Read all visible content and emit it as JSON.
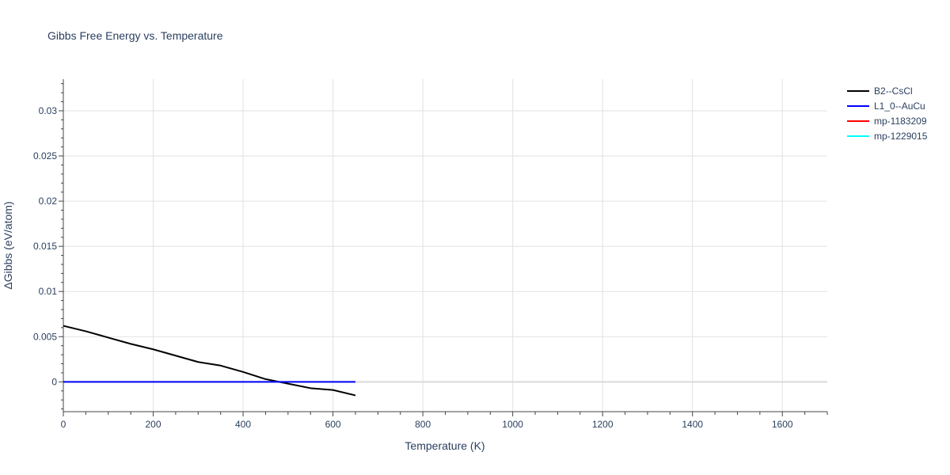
{
  "chart_data": {
    "type": "line",
    "title": "Gibbs Free Energy vs. Temperature",
    "xlabel": "Temperature (K)",
    "ylabel": "ΔGibbs (eV/atom)",
    "xlim": [
      0,
      1700
    ],
    "ylim": [
      -0.0033,
      0.0335
    ],
    "x_ticks": [
      0,
      200,
      400,
      600,
      800,
      1000,
      1200,
      1400,
      1600
    ],
    "y_ticks": [
      0,
      0.005,
      0.01,
      0.015,
      0.02,
      0.025,
      0.03
    ],
    "y_tick_labels": [
      "0",
      "0.005",
      "0.01",
      "0.015",
      "0.02",
      "0.025",
      "0.03"
    ],
    "grid": true,
    "legend_position": "top-right",
    "series": [
      {
        "name": "B2--CsCl",
        "color": "#000000",
        "x": [
          0,
          50,
          100,
          150,
          200,
          250,
          300,
          350,
          400,
          450,
          500,
          550,
          600,
          650
        ],
        "y": [
          0.0062,
          0.0056,
          0.0049,
          0.0042,
          0.0036,
          0.0029,
          0.0022,
          0.0018,
          0.0011,
          0.0003,
          -0.0002,
          -0.0007,
          -0.0009,
          -0.0015
        ]
      },
      {
        "name": "L1_0--AuCu",
        "color": "#0000ff",
        "x": [
          0,
          50,
          100,
          150,
          200,
          250,
          300,
          350,
          400,
          450,
          500,
          550,
          600,
          650
        ],
        "y": [
          0,
          0,
          0,
          0,
          0,
          0,
          0,
          0,
          0,
          0,
          0,
          0,
          0,
          0
        ]
      },
      {
        "name": "mp-1183209",
        "color": "#ff0000",
        "x": [],
        "y": []
      },
      {
        "name": "mp-1229015",
        "color": "#00ffff",
        "x": [],
        "y": []
      }
    ]
  }
}
